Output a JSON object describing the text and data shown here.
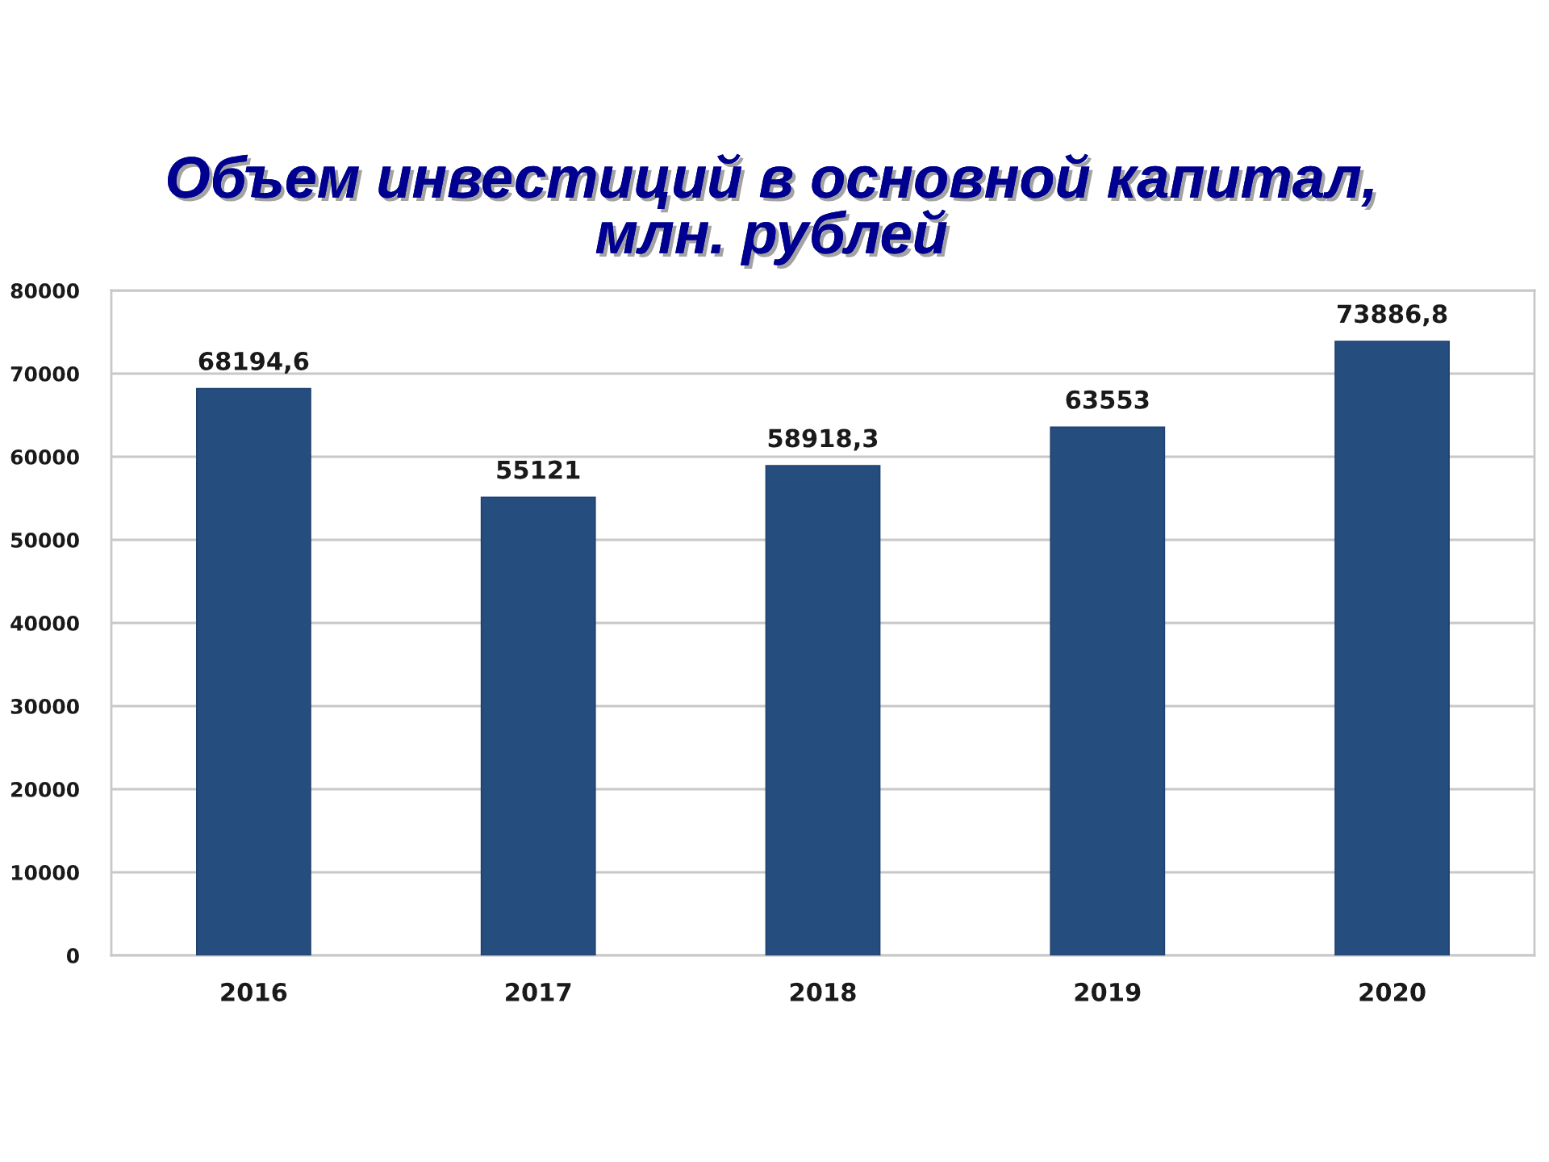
{
  "chart_data": {
    "type": "bar",
    "title": "Объем инвестиций в основной капитал,\nмлн. рублей",
    "categories": [
      "2016",
      "2017",
      "2018",
      "2019",
      "2020"
    ],
    "series": [
      {
        "color": "#254d7e",
        "values": [
          68194.6,
          55121,
          58918.3,
          63553,
          73886.8
        ],
        "value_labels": [
          "68194,6",
          "55121",
          "58918,3",
          "63553",
          "73886,8"
        ]
      }
    ],
    "ylim": [
      0,
      80000
    ],
    "yticks": [
      0,
      10000,
      20000,
      30000,
      40000,
      50000,
      60000,
      70000,
      80000
    ],
    "grid": "y",
    "legend": false
  }
}
